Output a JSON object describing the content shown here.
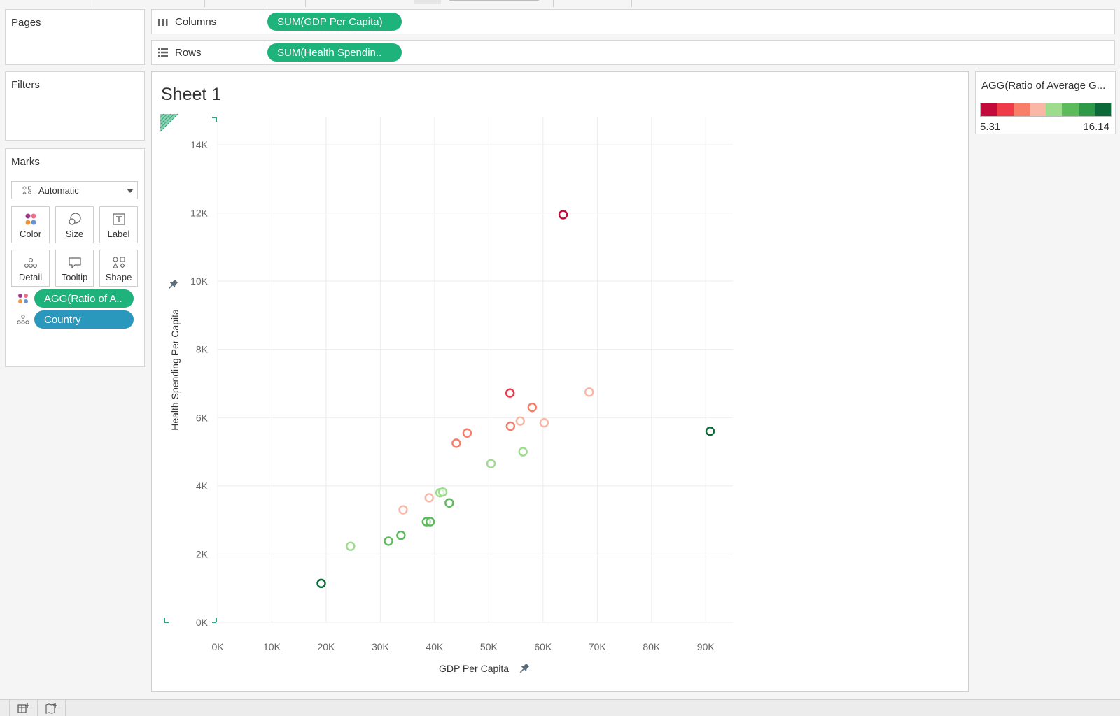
{
  "shelves": {
    "pages_label": "Pages",
    "filters_label": "Filters",
    "columns_label": "Columns",
    "rows_label": "Rows",
    "columns_pill": "SUM(GDP Per Capita)",
    "rows_pill": "SUM(Health Spendin.."
  },
  "marks": {
    "title": "Marks",
    "mark_type": "Automatic",
    "buttons": [
      "Color",
      "Size",
      "Label",
      "Detail",
      "Tooltip",
      "Shape"
    ],
    "color_pill": "AGG(Ratio of A..",
    "detail_pill": "Country"
  },
  "sheet": {
    "title": "Sheet 1"
  },
  "legend": {
    "title": "AGG(Ratio of Average G...",
    "min": "5.31",
    "max": "16.14",
    "colors": [
      "#c40a3a",
      "#f03a4a",
      "#f87e6a",
      "#fbb7a6",
      "#9ddc8c",
      "#5cbb5a",
      "#2e9a48",
      "#0c6a38"
    ]
  },
  "chart_data": {
    "type": "scatter",
    "xlabel": "GDP Per Capita",
    "ylabel": "Health Spending Per Capita",
    "xlim": [
      0,
      95000
    ],
    "ylim": [
      0,
      14800
    ],
    "xticks": [
      0,
      10000,
      20000,
      30000,
      40000,
      50000,
      60000,
      70000,
      80000,
      90000
    ],
    "xtick_labels": [
      "0K",
      "10K",
      "20K",
      "30K",
      "40K",
      "50K",
      "60K",
      "70K",
      "80K",
      "90K"
    ],
    "yticks": [
      0,
      2000,
      4000,
      6000,
      8000,
      10000,
      12000,
      14000
    ],
    "ytick_labels": [
      "0K",
      "2K",
      "4K",
      "6K",
      "8K",
      "10K",
      "12K",
      "14K"
    ],
    "grid": true,
    "points": [
      {
        "x": 63700,
        "y": 11950,
        "color": "#c40a3a"
      },
      {
        "x": 53900,
        "y": 6720,
        "color": "#f03a4a"
      },
      {
        "x": 58000,
        "y": 6300,
        "color": "#f87e6a"
      },
      {
        "x": 68500,
        "y": 6750,
        "color": "#fbb7a6"
      },
      {
        "x": 55800,
        "y": 5900,
        "color": "#fbb7a6"
      },
      {
        "x": 60200,
        "y": 5850,
        "color": "#fbb7a6"
      },
      {
        "x": 54000,
        "y": 5750,
        "color": "#f87e6a"
      },
      {
        "x": 46000,
        "y": 5550,
        "color": "#f87e6a"
      },
      {
        "x": 44000,
        "y": 5250,
        "color": "#f87e6a"
      },
      {
        "x": 56300,
        "y": 5000,
        "color": "#9ddc8c"
      },
      {
        "x": 50400,
        "y": 4650,
        "color": "#9ddc8c"
      },
      {
        "x": 90800,
        "y": 5600,
        "color": "#0c6a38"
      },
      {
        "x": 41000,
        "y": 3800,
        "color": "#9ddc8c"
      },
      {
        "x": 41500,
        "y": 3820,
        "color": "#9ddc8c"
      },
      {
        "x": 39000,
        "y": 3650,
        "color": "#fbb7a6"
      },
      {
        "x": 42700,
        "y": 3500,
        "color": "#5cbb5a"
      },
      {
        "x": 34200,
        "y": 3300,
        "color": "#fbb7a6"
      },
      {
        "x": 38500,
        "y": 2950,
        "color": "#5cbb5a"
      },
      {
        "x": 39200,
        "y": 2950,
        "color": "#5cbb5a"
      },
      {
        "x": 33800,
        "y": 2550,
        "color": "#5cbb5a"
      },
      {
        "x": 31500,
        "y": 2380,
        "color": "#5cbb5a"
      },
      {
        "x": 24500,
        "y": 2230,
        "color": "#9ddc8c"
      },
      {
        "x": 19100,
        "y": 1140,
        "color": "#0c6a38"
      }
    ]
  }
}
